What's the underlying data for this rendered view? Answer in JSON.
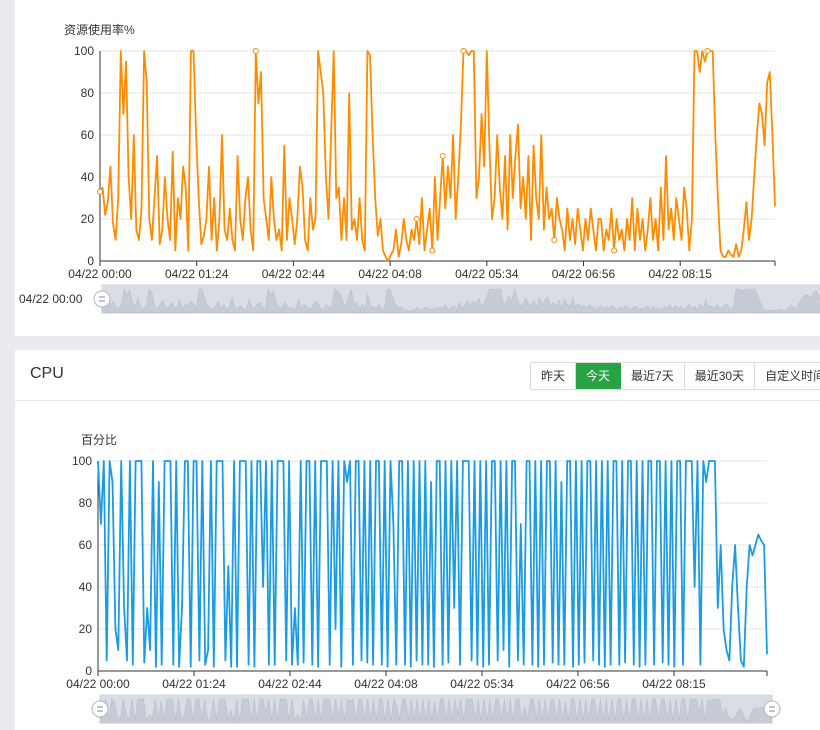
{
  "resource_panel": {
    "chart_data": {
      "type": "line",
      "title": "",
      "ylabel": "资源使用率%",
      "xlabel": "",
      "ylim": [
        0,
        100
      ],
      "yticks": [
        0,
        20,
        40,
        60,
        80,
        100
      ],
      "xtick_labels": [
        "04/22 00:00",
        "04/22 01:24",
        "04/22 02:44",
        "04/22 04:08",
        "04/22 05:34",
        "04/22 06:56",
        "04/22 08:15"
      ],
      "series": [
        {
          "name": "资源使用率",
          "color": "#ff8c00",
          "values": [
            33,
            35,
            22,
            28,
            45,
            18,
            10,
            30,
            100,
            70,
            95,
            40,
            20,
            60,
            15,
            10,
            25,
            100,
            85,
            20,
            10,
            30,
            50,
            8,
            15,
            40,
            20,
            10,
            52,
            5,
            30,
            20,
            45,
            35,
            5,
            100,
            100,
            60,
            30,
            8,
            12,
            20,
            45,
            10,
            30,
            5,
            20,
            60,
            15,
            10,
            25,
            10,
            5,
            50,
            20,
            10,
            30,
            40,
            15,
            5,
            100,
            75,
            90,
            30,
            20,
            10,
            40,
            20,
            10,
            15,
            5,
            55,
            10,
            30,
            20,
            8,
            20,
            45,
            35,
            10,
            5,
            30,
            15,
            20,
            100,
            90,
            80,
            40,
            20,
            60,
            100,
            30,
            35,
            10,
            30,
            10,
            80,
            15,
            20,
            10,
            30,
            10,
            5,
            100,
            98,
            60,
            30,
            12,
            20,
            5,
            2,
            0,
            3,
            5,
            15,
            2,
            8,
            20,
            10,
            5,
            15,
            10,
            20,
            8,
            30,
            5,
            15,
            25,
            5,
            40,
            10,
            30,
            50,
            25,
            45,
            30,
            60,
            20,
            40,
            65,
            100,
            100,
            98,
            100,
            100,
            30,
            40,
            70,
            45,
            100,
            55,
            20,
            30,
            60,
            35,
            20,
            50,
            15,
            60,
            30,
            50,
            65,
            25,
            40,
            20,
            50,
            10,
            55,
            30,
            20,
            60,
            15,
            35,
            20,
            25,
            10,
            30,
            20,
            15,
            5,
            25,
            10,
            20,
            8,
            25,
            15,
            5,
            20,
            10,
            25,
            15,
            5,
            20,
            20,
            5,
            15,
            10,
            25,
            5,
            20,
            10,
            15,
            5,
            20,
            10,
            30,
            5,
            25,
            10,
            20,
            5,
            15,
            30,
            10,
            20,
            5,
            35,
            10,
            50,
            15,
            25,
            10,
            30,
            20,
            10,
            35,
            25,
            5,
            20,
            100,
            100,
            90,
            100,
            95,
            100,
            100,
            100,
            60,
            30,
            5,
            2,
            2,
            5,
            3,
            2,
            8,
            2,
            5,
            15,
            28,
            10,
            20,
            40,
            60,
            75,
            70,
            55,
            85,
            90,
            60,
            26
          ]
        }
      ]
    },
    "zoom_label": "04/22 00:00"
  },
  "cpu_panel": {
    "title": "CPU",
    "time_ranges": [
      "昨天",
      "今天",
      "最近7天",
      "最近30天",
      "自定义时间"
    ],
    "active_range": "今天",
    "chart_data": {
      "type": "line",
      "title": "",
      "ylabel": "百分比",
      "xlabel": "",
      "ylim": [
        0,
        100
      ],
      "yticks": [
        0,
        20,
        40,
        60,
        80,
        100
      ],
      "xtick_labels": [
        "04/22 00:00",
        "04/22 01:24",
        "04/22 02:44",
        "04/22 04:08",
        "04/22 05:34",
        "04/22 06:56",
        "04/22 08:15"
      ],
      "series": [
        {
          "name": "CPU",
          "color": "#1a9be6",
          "values": [
            100,
            70,
            100,
            5,
            100,
            90,
            20,
            10,
            100,
            30,
            5,
            100,
            3,
            100,
            100,
            100,
            4,
            30,
            10,
            100,
            2,
            90,
            3,
            100,
            100,
            100,
            3,
            100,
            2,
            30,
            100,
            100,
            2,
            100,
            100,
            5,
            100,
            3,
            10,
            100,
            2,
            100,
            100,
            100,
            5,
            50,
            2,
            100,
            2,
            100,
            100,
            100,
            3,
            100,
            2,
            100,
            100,
            40,
            100,
            3,
            100,
            3,
            100,
            100,
            100,
            5,
            100,
            3,
            30,
            3,
            100,
            4,
            100,
            100,
            3,
            100,
            2,
            100,
            100,
            100,
            3,
            100,
            20,
            100,
            2,
            100,
            90,
            100,
            3,
            100,
            100,
            5,
            100,
            4,
            100,
            3,
            100,
            100,
            3,
            100,
            2,
            100,
            70,
            3,
            100,
            100,
            3,
            100,
            2,
            100,
            5,
            100,
            3,
            100,
            3,
            90,
            2,
            100,
            100,
            3,
            100,
            4,
            100,
            30,
            100,
            3,
            100,
            100,
            100,
            5,
            100,
            3,
            100,
            2,
            100,
            3,
            100,
            100,
            5,
            100,
            10,
            100,
            2,
            100,
            100,
            5,
            70,
            3,
            100,
            100,
            3,
            100,
            2,
            100,
            3,
            100,
            100,
            4,
            100,
            3,
            90,
            3,
            100,
            100,
            2,
            100,
            3,
            100,
            4,
            100,
            100,
            5,
            100,
            3,
            100,
            2,
            100,
            3,
            100,
            100,
            3,
            100,
            4,
            100,
            100,
            3,
            100,
            2,
            100,
            3,
            100,
            100,
            3,
            100,
            100,
            4,
            100,
            3,
            100,
            2,
            100,
            100,
            3,
            100,
            100,
            100,
            40,
            100,
            3,
            100,
            90,
            100,
            100,
            100,
            30,
            60,
            20,
            10,
            5,
            40,
            60,
            30,
            5,
            2,
            40,
            60,
            55,
            60,
            65,
            62,
            60,
            8
          ]
        }
      ]
    }
  }
}
